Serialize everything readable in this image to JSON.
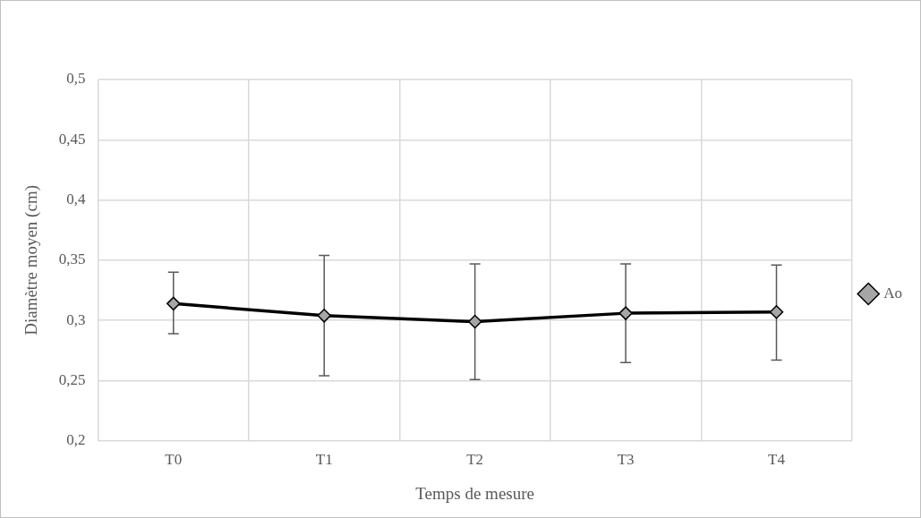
{
  "chart_data": {
    "type": "line",
    "xlabel": "Temps de mesure",
    "ylabel": "Diamètre moyen (cm)",
    "categories": [
      "T0",
      "T1",
      "T2",
      "T3",
      "T4"
    ],
    "series": [
      {
        "name": "Ao",
        "color": "#000000",
        "values": [
          0.314,
          0.304,
          0.299,
          0.306,
          0.307
        ],
        "errors": [
          [
            0.289,
            0.34
          ],
          [
            0.254,
            0.354
          ],
          [
            0.251,
            0.347
          ],
          [
            0.265,
            0.347
          ],
          [
            0.267,
            0.346
          ]
        ]
      }
    ],
    "ylim": [
      0.2,
      0.5
    ],
    "yticks": [
      {
        "value": 0.2,
        "label": "0,2"
      },
      {
        "value": 0.25,
        "label": "0,25"
      },
      {
        "value": 0.3,
        "label": "0,3"
      },
      {
        "value": 0.35,
        "label": "0,35"
      },
      {
        "value": 0.4,
        "label": "0,4"
      },
      {
        "value": 0.45,
        "label": "0,45"
      },
      {
        "value": 0.5,
        "label": "0,5"
      }
    ],
    "grid": true,
    "legend": "right",
    "marker": "diamond",
    "line_style": "solid"
  }
}
